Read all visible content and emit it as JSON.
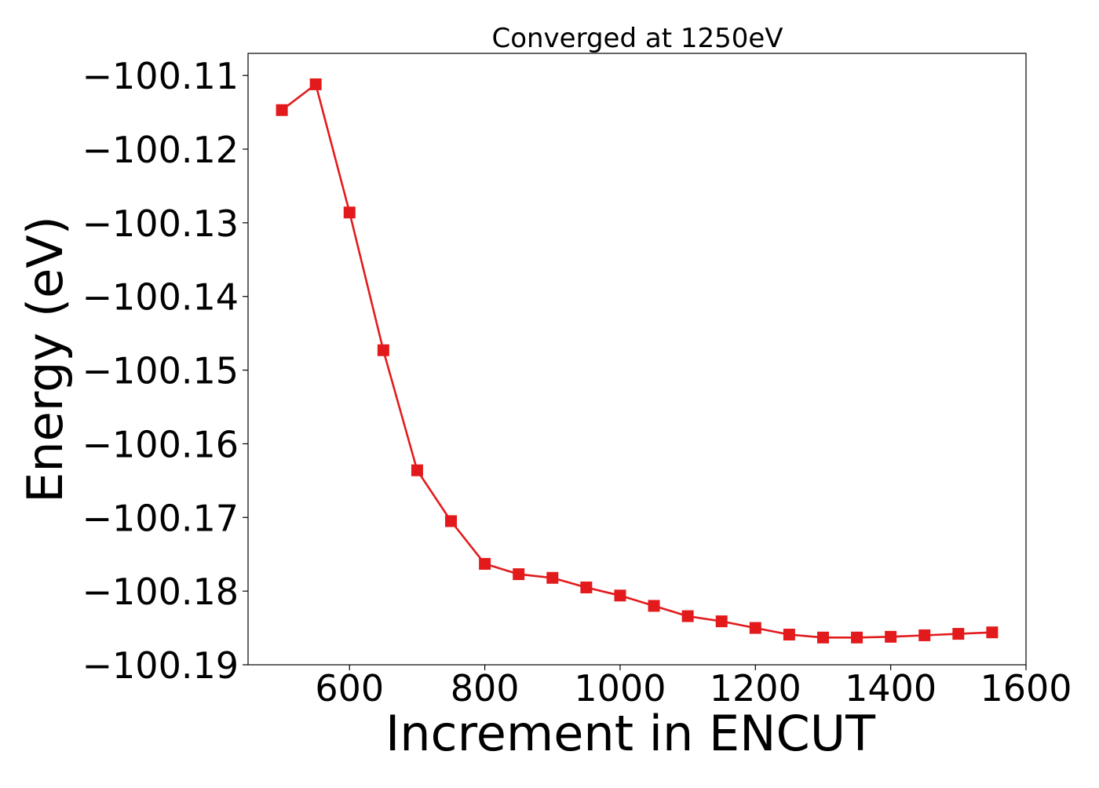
{
  "chart_data": {
    "type": "line",
    "title": "Converged at 1250eV",
    "xlabel": "Increment in ENCUT",
    "ylabel": "Energy (eV)",
    "xlim": [
      450,
      1600
    ],
    "ylim": [
      -100.19,
      -100.107
    ],
    "xticks": [
      600,
      800,
      1000,
      1200,
      1400,
      1600
    ],
    "xtick_labels": [
      "600",
      "800",
      "1000",
      "1200",
      "1400",
      "1600"
    ],
    "yticks": [
      -100.11,
      -100.12,
      -100.13,
      -100.14,
      -100.15,
      -100.16,
      -100.17,
      -100.18,
      -100.19
    ],
    "ytick_labels": [
      "−100.11",
      "−100.12",
      "−100.13",
      "−100.14",
      "−100.15",
      "−100.16",
      "−100.17",
      "−100.18",
      "−100.19"
    ],
    "grid": false,
    "legend": "none",
    "series": [
      {
        "color": "#e31a1c",
        "marker": "square",
        "x": [
          500,
          550,
          600,
          650,
          700,
          750,
          800,
          850,
          900,
          950,
          1000,
          1050,
          1100,
          1150,
          1200,
          1250,
          1300,
          1350,
          1400,
          1450,
          1500,
          1550
        ],
        "y": [
          -100.1147,
          -100.1112,
          -100.1286,
          -100.1473,
          -100.1636,
          -100.1705,
          -100.1763,
          -100.1777,
          -100.1782,
          -100.1795,
          -100.1806,
          -100.182,
          -100.1834,
          -100.1841,
          -100.185,
          -100.1859,
          -100.1863,
          -100.1863,
          -100.1862,
          -100.186,
          -100.1858,
          -100.1856
        ]
      }
    ]
  }
}
